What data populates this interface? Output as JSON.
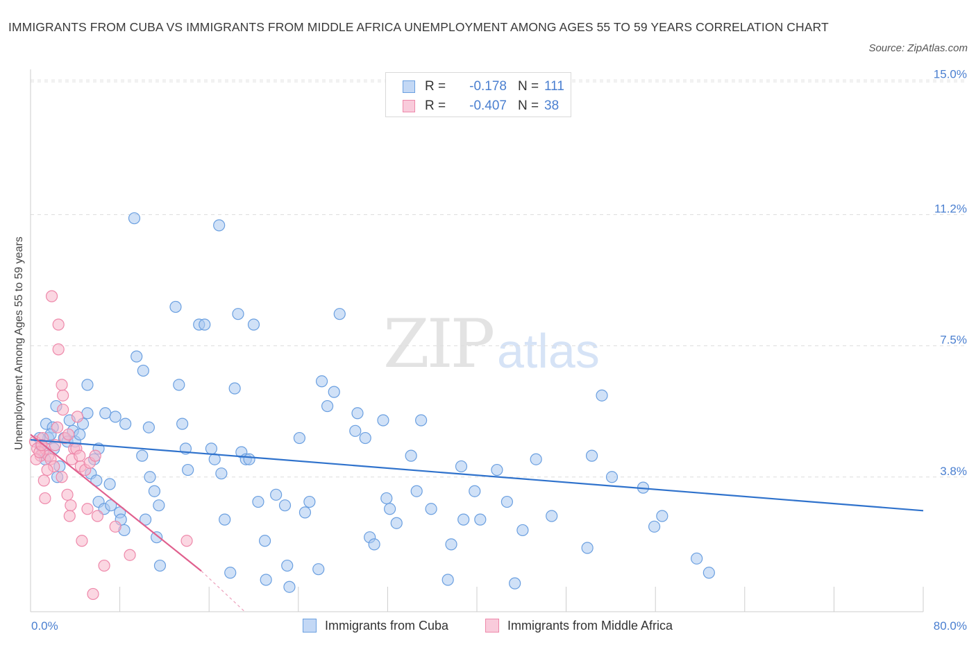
{
  "title": "IMMIGRANTS FROM CUBA VS IMMIGRANTS FROM MIDDLE AFRICA UNEMPLOYMENT AMONG AGES 55 TO 59 YEARS CORRELATION CHART",
  "source": "Source: ZipAtlas.com",
  "watermark": {
    "zip": "ZIP",
    "atlas": "atlas"
  },
  "legend": {
    "cuba": {
      "r_label": "R =",
      "r_value": "-0.178",
      "n_label": "N =",
      "n_value": "111"
    },
    "africa": {
      "r_label": "R =",
      "r_value": "-0.407",
      "n_label": "N =",
      "n_value": "38"
    }
  },
  "bottom_legend": {
    "cuba": "Immigrants from Cuba",
    "africa": "Immigrants from Middle Africa"
  },
  "colors": {
    "cuba_fill": "#a9c8f0",
    "cuba_stroke": "#6a9fe0",
    "cuba_line": "#2f72cc",
    "africa_fill": "#f7b6cb",
    "africa_stroke": "#ee88aa",
    "africa_line": "#e0608e",
    "tick_text": "#4a7fd0",
    "grid": "#dddddd"
  },
  "chart_data": {
    "type": "scatter",
    "title": "IMMIGRANTS FROM CUBA VS IMMIGRANTS FROM MIDDLE AFRICA UNEMPLOYMENT AMONG AGES 55 TO 59 YEARS CORRELATION CHART",
    "xlabel": "",
    "ylabel": "Unemployment Among Ages 55 to 59 years",
    "xlim": [
      0,
      80
    ],
    "ylim": [
      0,
      15.3
    ],
    "x_tick_labels": [
      {
        "value": 0,
        "label": "0.0%"
      },
      {
        "value": 80,
        "label": "80.0%"
      }
    ],
    "y_ticks": [
      {
        "value": 3.8,
        "label": "3.8%"
      },
      {
        "value": 7.5,
        "label": "7.5%"
      },
      {
        "value": 11.2,
        "label": "11.2%"
      },
      {
        "value": 15.0,
        "label": "15.0%"
      }
    ],
    "grid": true,
    "series": [
      {
        "name": "Immigrants from Cuba",
        "trend": {
          "x0": 0,
          "y0": 4.85,
          "x1": 80,
          "y1": 2.85
        },
        "points": [
          [
            1.4,
            5.3
          ],
          [
            1.6,
            4.9
          ],
          [
            2.0,
            5.2
          ],
          [
            2.3,
            5.8
          ],
          [
            1.8,
            5.0
          ],
          [
            2.1,
            4.6
          ],
          [
            2.6,
            4.1
          ],
          [
            3.0,
            4.9
          ],
          [
            3.3,
            4.8
          ],
          [
            3.5,
            5.4
          ],
          [
            3.8,
            5.1
          ],
          [
            4.0,
            4.8
          ],
          [
            4.4,
            5.0
          ],
          [
            4.7,
            5.3
          ],
          [
            5.1,
            5.6
          ],
          [
            0.9,
            4.7
          ],
          [
            1.1,
            4.5
          ],
          [
            0.8,
            4.9
          ],
          [
            1.3,
            4.3
          ],
          [
            2.4,
            3.8
          ],
          [
            5.1,
            6.4
          ],
          [
            6.7,
            5.6
          ],
          [
            7.6,
            5.5
          ],
          [
            8.5,
            5.3
          ],
          [
            6.1,
            4.6
          ],
          [
            5.7,
            4.3
          ],
          [
            5.4,
            3.9
          ],
          [
            5.9,
            3.7
          ],
          [
            7.1,
            3.6
          ],
          [
            6.1,
            3.1
          ],
          [
            6.6,
            2.9
          ],
          [
            7.2,
            3.0
          ],
          [
            8.0,
            2.8
          ],
          [
            8.1,
            2.6
          ],
          [
            8.4,
            2.3
          ],
          [
            9.3,
            11.1
          ],
          [
            9.5,
            7.2
          ],
          [
            10.1,
            6.8
          ],
          [
            10.6,
            5.2
          ],
          [
            10.0,
            4.4
          ],
          [
            10.7,
            3.8
          ],
          [
            11.1,
            3.4
          ],
          [
            11.5,
            3.0
          ],
          [
            10.3,
            2.6
          ],
          [
            11.3,
            2.1
          ],
          [
            11.6,
            1.3
          ],
          [
            13.0,
            8.6
          ],
          [
            13.3,
            6.4
          ],
          [
            13.6,
            5.3
          ],
          [
            13.9,
            4.6
          ],
          [
            14.1,
            4.0
          ],
          [
            15.1,
            8.1
          ],
          [
            15.6,
            8.1
          ],
          [
            16.2,
            4.6
          ],
          [
            16.5,
            4.3
          ],
          [
            16.9,
            10.9
          ],
          [
            17.1,
            3.9
          ],
          [
            17.4,
            2.6
          ],
          [
            17.9,
            1.1
          ],
          [
            18.3,
            6.3
          ],
          [
            18.6,
            8.4
          ],
          [
            18.9,
            4.5
          ],
          [
            19.3,
            4.3
          ],
          [
            19.6,
            4.3
          ],
          [
            20.0,
            8.1
          ],
          [
            20.4,
            3.1
          ],
          [
            21.0,
            2.0
          ],
          [
            21.1,
            0.9
          ],
          [
            22.0,
            3.3
          ],
          [
            22.8,
            3.0
          ],
          [
            23.0,
            1.3
          ],
          [
            23.2,
            0.7
          ],
          [
            24.1,
            4.9
          ],
          [
            24.6,
            2.8
          ],
          [
            25.0,
            3.1
          ],
          [
            25.8,
            1.2
          ],
          [
            26.1,
            6.5
          ],
          [
            26.6,
            5.8
          ],
          [
            27.2,
            6.2
          ],
          [
            27.7,
            8.4
          ],
          [
            29.1,
            5.1
          ],
          [
            29.3,
            5.6
          ],
          [
            30.0,
            4.9
          ],
          [
            30.4,
            2.1
          ],
          [
            30.8,
            1.9
          ],
          [
            31.6,
            5.4
          ],
          [
            31.9,
            3.2
          ],
          [
            32.2,
            2.9
          ],
          [
            32.8,
            2.5
          ],
          [
            34.1,
            4.4
          ],
          [
            34.6,
            3.4
          ],
          [
            35.0,
            5.4
          ],
          [
            35.9,
            2.9
          ],
          [
            37.4,
            0.9
          ],
          [
            37.7,
            1.9
          ],
          [
            38.6,
            4.1
          ],
          [
            38.8,
            2.6
          ],
          [
            39.8,
            3.4
          ],
          [
            40.3,
            2.6
          ],
          [
            41.8,
            4.0
          ],
          [
            42.7,
            3.1
          ],
          [
            43.4,
            0.8
          ],
          [
            44.1,
            2.3
          ],
          [
            45.3,
            4.3
          ],
          [
            46.7,
            2.7
          ],
          [
            49.9,
            1.8
          ],
          [
            50.3,
            4.4
          ],
          [
            51.2,
            6.1
          ],
          [
            52.1,
            3.8
          ],
          [
            54.9,
            3.5
          ],
          [
            55.9,
            2.4
          ],
          [
            56.6,
            2.7
          ],
          [
            59.7,
            1.5
          ],
          [
            60.8,
            1.1
          ]
        ]
      },
      {
        "name": "Immigrants from Middle Africa",
        "trend": {
          "x0": 0,
          "y0": 5.0,
          "x1": 15.3,
          "y1": 1.15
        },
        "trend_dashed_to": {
          "x1": 19.2,
          "y1": 0.0
        },
        "points": [
          [
            0.4,
            4.8
          ],
          [
            0.6,
            4.6
          ],
          [
            0.9,
            4.4
          ],
          [
            1.1,
            4.9
          ],
          [
            1.3,
            4.6
          ],
          [
            1.6,
            4.4
          ],
          [
            1.8,
            4.3
          ],
          [
            2.1,
            4.1
          ],
          [
            0.5,
            4.3
          ],
          [
            0.8,
            4.5
          ],
          [
            1.0,
            4.7
          ],
          [
            2.4,
            5.2
          ],
          [
            2.9,
            6.1
          ],
          [
            3.1,
            4.9
          ],
          [
            2.8,
            3.8
          ],
          [
            3.3,
            3.3
          ],
          [
            3.6,
            3.0
          ],
          [
            3.9,
            4.6
          ],
          [
            4.2,
            5.5
          ],
          [
            4.5,
            4.1
          ],
          [
            4.9,
            4.0
          ],
          [
            2.5,
            7.4
          ],
          [
            2.8,
            6.4
          ],
          [
            2.9,
            5.7
          ],
          [
            2.2,
            4.7
          ],
          [
            3.4,
            5.0
          ],
          [
            3.7,
            4.3
          ],
          [
            4.1,
            4.6
          ],
          [
            4.4,
            4.4
          ],
          [
            5.1,
            2.9
          ],
          [
            1.9,
            8.9
          ],
          [
            2.5,
            8.1
          ],
          [
            1.5,
            4.0
          ],
          [
            1.2,
            3.7
          ],
          [
            3.5,
            2.7
          ],
          [
            4.6,
            2.0
          ],
          [
            7.6,
            2.4
          ],
          [
            8.9,
            1.6
          ],
          [
            5.6,
            0.5
          ],
          [
            6.6,
            1.3
          ],
          [
            14.0,
            2.0
          ],
          [
            6.0,
            2.7
          ],
          [
            5.3,
            4.2
          ],
          [
            1.3,
            3.2
          ],
          [
            5.8,
            4.4
          ]
        ]
      }
    ]
  }
}
